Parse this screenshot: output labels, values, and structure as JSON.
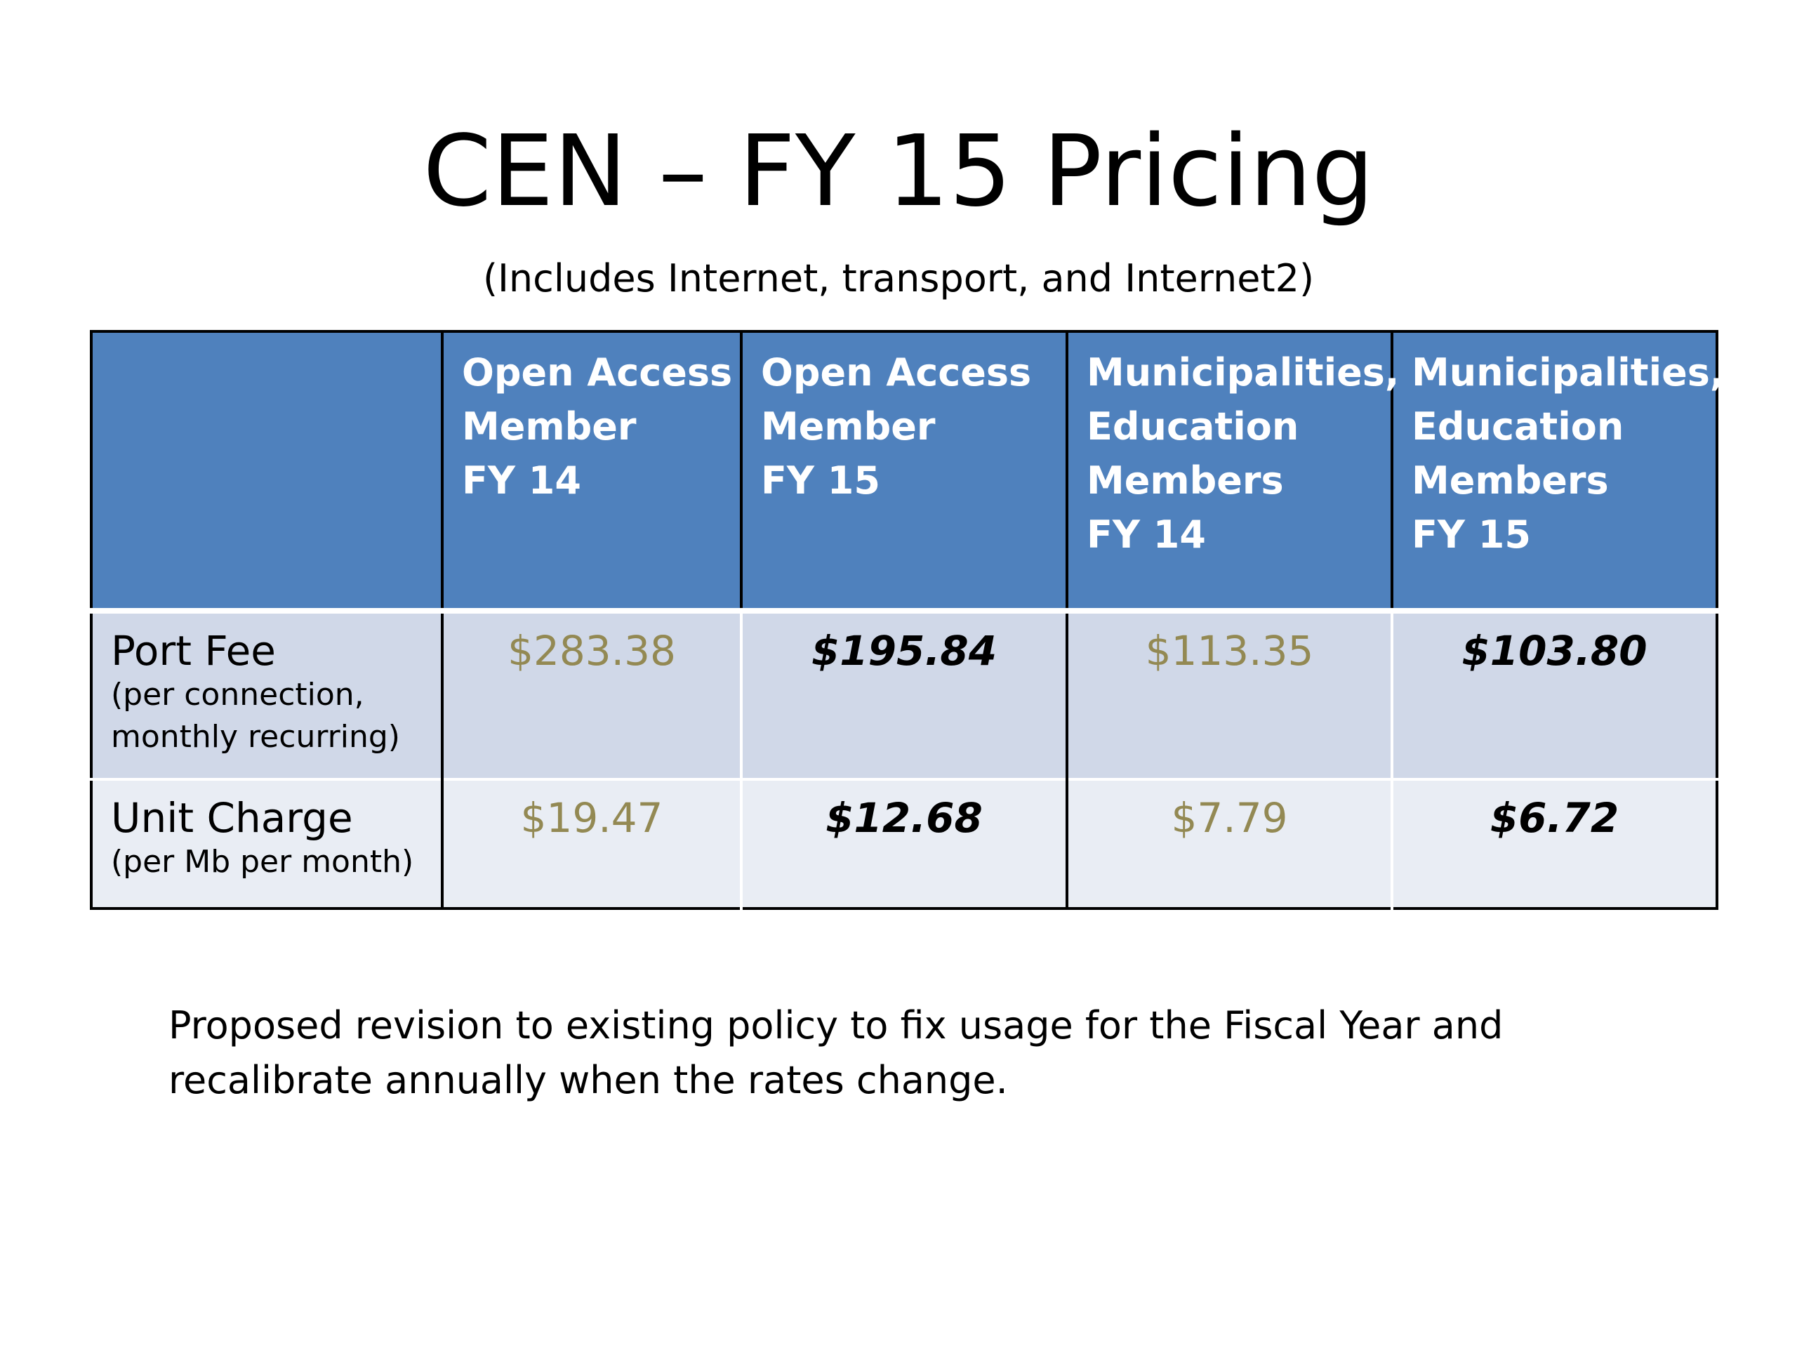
{
  "slide": {
    "title": "CEN – FY 15 Pricing",
    "subtitle": "(Includes Internet, transport, and Internet2)"
  },
  "table": {
    "columns": [
      {
        "lines": [
          "Open Access",
          "Member",
          "FY 14"
        ]
      },
      {
        "lines": [
          "Open Access",
          "Member",
          "FY 15"
        ]
      },
      {
        "lines": [
          "Municipalities,",
          "Education",
          "Members",
          "FY 14"
        ]
      },
      {
        "lines": [
          "Municipalities,",
          "Education",
          "Members",
          "FY 15"
        ]
      }
    ],
    "rows": [
      {
        "label": "Port Fee",
        "note_lines": [
          "(per connection,",
          "monthly recurring)"
        ],
        "values": [
          "$283.38",
          "$195.84",
          "$113.35",
          "$103.80"
        ]
      },
      {
        "label": "Unit Charge",
        "note_lines": [
          "(per Mb per month)"
        ],
        "values": [
          "$19.47",
          "$12.68",
          "$7.79",
          "$6.72"
        ]
      }
    ]
  },
  "footnote": {
    "lines": [
      "Proposed revision to existing policy to fix usage for the Fiscal Year and",
      "recalibrate annually when the rates change."
    ]
  },
  "colors": {
    "header_blue": "#4f81bd",
    "row_band_dark": "#d0d8e8",
    "row_band_light": "#e9edf4",
    "fy14_value": "#938953",
    "fy15_value": "#000000"
  }
}
